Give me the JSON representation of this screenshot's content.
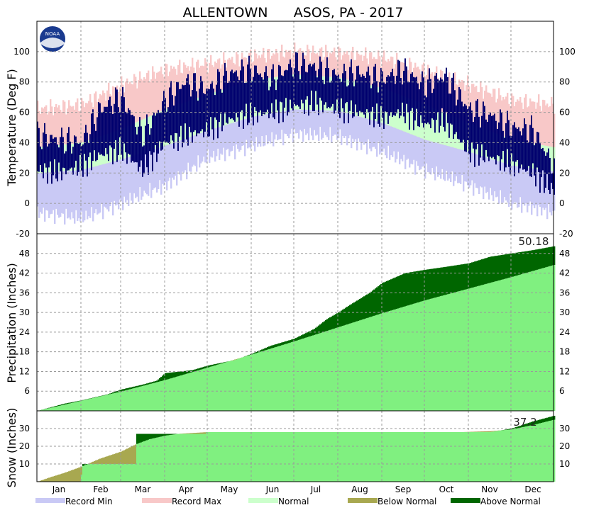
{
  "title": "ALLENTOWN      ASOS, PA - 2017",
  "colors": {
    "record_min": "#c9c9f5",
    "record_max": "#f8c8c8",
    "normal_band": "#ccffcc",
    "observed": "#00006e",
    "normal_fill": "#80f080",
    "below_normal": "#a8a850",
    "above_normal": "#006600"
  },
  "months": [
    "Jan",
    "Feb",
    "Mar",
    "Apr",
    "May",
    "Jun",
    "Jul",
    "Aug",
    "Sep",
    "Oct",
    "Nov",
    "Dec"
  ],
  "legend": [
    {
      "label": "Record Min",
      "color": "#c9c9f5"
    },
    {
      "label": "Record Max",
      "color": "#f8c8c8"
    },
    {
      "label": "Normal",
      "color": "#ccffcc"
    },
    {
      "label": "Below Normal",
      "color": "#a8a850"
    },
    {
      "label": "Above Normal",
      "color": "#006600"
    }
  ],
  "logo_text": "NOAA",
  "chart_data": [
    {
      "type": "area",
      "panel": "temperature",
      "ylabel": "Temperature (Deg F)",
      "ylim": [
        -20,
        120
      ],
      "yticks": [
        -20,
        0,
        20,
        40,
        60,
        80,
        100
      ],
      "grid": true,
      "x_unit": "day of year 2017",
      "normal_high": {
        "x": [
          1,
          32,
          60,
          91,
          121,
          152,
          182,
          213,
          244,
          274,
          305,
          335,
          365
        ],
        "y": [
          37,
          40,
          49,
          62,
          72,
          81,
          85,
          83,
          76,
          65,
          53,
          42,
          37
        ]
      },
      "normal_low": {
        "x": [
          1,
          32,
          60,
          91,
          121,
          152,
          182,
          213,
          244,
          274,
          305,
          335,
          365
        ],
        "y": [
          20,
          22,
          29,
          38,
          48,
          57,
          62,
          61,
          53,
          42,
          34,
          25,
          21
        ]
      },
      "record_max": {
        "x": [
          1,
          32,
          60,
          91,
          121,
          152,
          182,
          213,
          244,
          274,
          305,
          335,
          365
        ],
        "y": [
          62,
          65,
          78,
          88,
          92,
          97,
          100,
          99,
          96,
          88,
          78,
          68,
          65
        ]
      },
      "record_min": {
        "x": [
          1,
          32,
          60,
          91,
          121,
          152,
          182,
          213,
          244,
          274,
          305,
          335,
          365
        ],
        "y": [
          -6,
          -10,
          0,
          12,
          30,
          38,
          46,
          44,
          34,
          22,
          12,
          0,
          -6
        ]
      },
      "observed_high": {
        "x": [
          1,
          15,
          32,
          45,
          60,
          75,
          91,
          105,
          121,
          135,
          152,
          166,
          182,
          196,
          213,
          227,
          244,
          258,
          274,
          288,
          305,
          320,
          335,
          350,
          365
        ],
        "y": [
          45,
          42,
          40,
          62,
          70,
          45,
          68,
          80,
          75,
          85,
          88,
          82,
          92,
          90,
          84,
          86,
          82,
          88,
          78,
          84,
          62,
          58,
          50,
          48,
          24
        ]
      },
      "observed_low": {
        "x": [
          1,
          15,
          32,
          45,
          60,
          75,
          91,
          105,
          121,
          135,
          152,
          166,
          182,
          196,
          213,
          227,
          244,
          258,
          274,
          288,
          305,
          320,
          335,
          350,
          365
        ],
        "y": [
          22,
          20,
          24,
          32,
          35,
          22,
          40,
          44,
          48,
          55,
          58,
          60,
          64,
          66,
          62,
          60,
          56,
          60,
          52,
          54,
          34,
          30,
          26,
          20,
          8
        ]
      }
    },
    {
      "type": "area",
      "panel": "precipitation",
      "ylabel": "Precipitation (Inches)",
      "ylim": [
        0,
        54
      ],
      "yticks": [
        6,
        12,
        18,
        24,
        30,
        36,
        42,
        48
      ],
      "grid": true,
      "total_label": "50.18",
      "normal_cumulative": {
        "x": [
          1,
          32,
          60,
          91,
          121,
          152,
          182,
          213,
          244,
          274,
          305,
          335,
          365
        ],
        "y": [
          0,
          3.1,
          5.9,
          9.4,
          13.2,
          17.2,
          21.2,
          25.5,
          29.8,
          33.7,
          37.3,
          40.8,
          44.5
        ]
      },
      "observed_cumulative": {
        "x": [
          1,
          20,
          32,
          50,
          60,
          75,
          85,
          91,
          110,
          121,
          140,
          152,
          165,
          182,
          196,
          205,
          213,
          220,
          235,
          244,
          260,
          274,
          290,
          305,
          320,
          335,
          350,
          365
        ],
        "y": [
          0,
          2.2,
          3.2,
          5,
          6.5,
          8,
          9.2,
          11.5,
          12.4,
          13.8,
          15.5,
          17.4,
          19.8,
          22,
          25,
          28,
          30,
          32,
          36,
          39,
          42,
          43,
          44,
          45,
          47,
          48,
          49,
          50.18
        ]
      }
    },
    {
      "type": "area",
      "panel": "snow",
      "ylabel": "Snow (Inches)",
      "ylim": [
        0,
        40
      ],
      "yticks": [
        10,
        20,
        30
      ],
      "grid": true,
      "total_label": "37.2",
      "normal_cumulative": {
        "x": [
          1,
          10,
          20,
          32,
          45,
          60,
          70,
          80,
          91,
          100,
          121,
          300,
          320,
          335,
          350,
          365
        ],
        "y": [
          0,
          2.5,
          5,
          8.5,
          13,
          17,
          21,
          24,
          26,
          27,
          28,
          28,
          28.5,
          29.5,
          32,
          35
        ]
      },
      "observed_cumulative": {
        "x": [
          1,
          32,
          33,
          60,
          70,
          71,
          91,
          120,
          200,
          305,
          320,
          335,
          350,
          365
        ],
        "y": [
          0,
          4,
          10,
          10,
          10,
          27,
          27,
          28,
          28,
          28,
          28,
          30,
          34,
          37.2
        ]
      }
    }
  ]
}
